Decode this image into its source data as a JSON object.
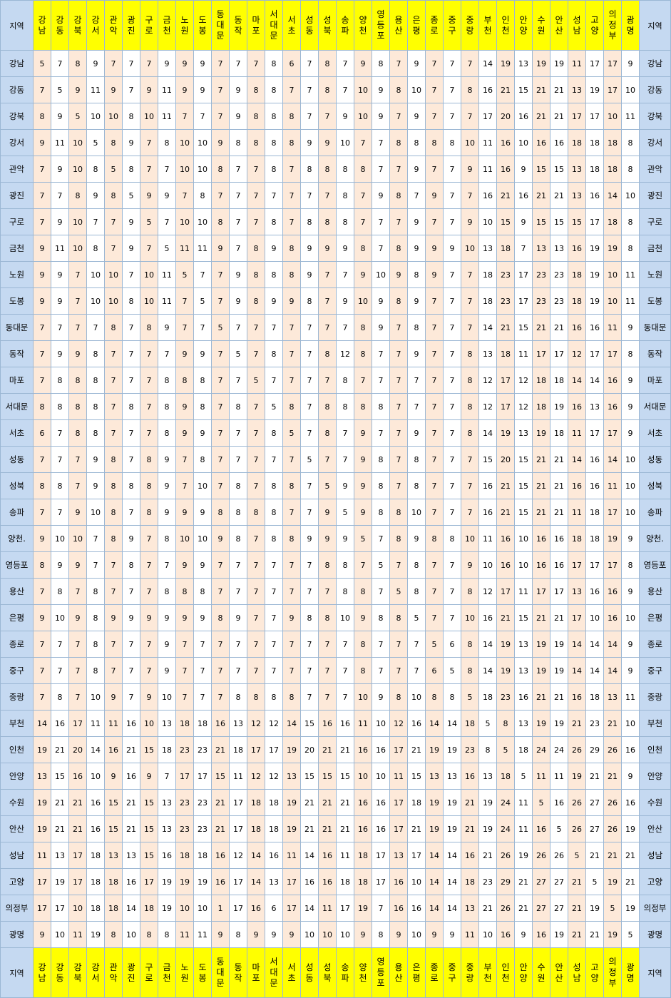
{
  "table": {
    "corner_label": "지역",
    "columns": [
      "강남",
      "강동",
      "강북",
      "강서",
      "관악",
      "광진",
      "구로",
      "금천",
      "노원",
      "도봉",
      "동대문",
      "동작",
      "마포",
      "서대문",
      "서초",
      "성동",
      "성북",
      "송파",
      "양천",
      "영등포",
      "용산",
      "은평",
      "종로",
      "중구",
      "중랑",
      "부천",
      "인천",
      "안양",
      "수원",
      "안산",
      "성남",
      "고양",
      "의정부",
      "광명"
    ],
    "rows": [
      {
        "label": "강남",
        "values": [
          5,
          7,
          8,
          9,
          7,
          7,
          7,
          9,
          9,
          9,
          7,
          7,
          7,
          8,
          6,
          7,
          8,
          7,
          9,
          8,
          7,
          9,
          7,
          7,
          7,
          14,
          19,
          13,
          19,
          19,
          11,
          17,
          17,
          9
        ]
      },
      {
        "label": "강동",
        "values": [
          7,
          5,
          9,
          11,
          9,
          7,
          9,
          11,
          9,
          9,
          7,
          9,
          8,
          8,
          7,
          7,
          8,
          7,
          10,
          9,
          8,
          10,
          7,
          7,
          8,
          16,
          21,
          15,
          21,
          21,
          13,
          19,
          17,
          10
        ]
      },
      {
        "label": "강북",
        "values": [
          8,
          9,
          5,
          10,
          10,
          8,
          10,
          11,
          7,
          7,
          7,
          9,
          8,
          8,
          8,
          7,
          7,
          9,
          10,
          9,
          7,
          9,
          7,
          7,
          7,
          17,
          20,
          16,
          21,
          21,
          17,
          17,
          10,
          11
        ]
      },
      {
        "label": "강서",
        "values": [
          9,
          11,
          10,
          5,
          8,
          9,
          7,
          8,
          10,
          10,
          9,
          8,
          8,
          8,
          8,
          9,
          9,
          10,
          7,
          7,
          8,
          8,
          8,
          8,
          10,
          11,
          16,
          10,
          16,
          16,
          18,
          18,
          18,
          8
        ]
      },
      {
        "label": "관악",
        "values": [
          7,
          9,
          10,
          8,
          5,
          8,
          7,
          7,
          10,
          10,
          8,
          7,
          7,
          8,
          7,
          8,
          8,
          8,
          8,
          7,
          7,
          9,
          7,
          7,
          9,
          11,
          16,
          9,
          15,
          15,
          13,
          18,
          18,
          8
        ]
      },
      {
        "label": "광진",
        "values": [
          7,
          7,
          8,
          9,
          8,
          5,
          9,
          9,
          7,
          8,
          7,
          7,
          7,
          7,
          7,
          7,
          7,
          8,
          7,
          9,
          8,
          7,
          9,
          7,
          7,
          16,
          21,
          16,
          21,
          21,
          13,
          16,
          14,
          10
        ]
      },
      {
        "label": "구로",
        "values": [
          7,
          9,
          10,
          7,
          7,
          9,
          5,
          7,
          10,
          10,
          8,
          7,
          7,
          8,
          7,
          8,
          8,
          8,
          7,
          7,
          7,
          9,
          7,
          7,
          9,
          10,
          15,
          9,
          15,
          15,
          15,
          17,
          18,
          8
        ]
      },
      {
        "label": "금천",
        "values": [
          9,
          11,
          10,
          8,
          7,
          9,
          7,
          5,
          11,
          11,
          9,
          7,
          8,
          9,
          8,
          9,
          9,
          9,
          8,
          7,
          8,
          9,
          9,
          9,
          10,
          13,
          18,
          7,
          13,
          13,
          16,
          19,
          19,
          8
        ]
      },
      {
        "label": "노원",
        "values": [
          9,
          9,
          7,
          10,
          10,
          7,
          10,
          11,
          5,
          7,
          7,
          9,
          8,
          8,
          8,
          9,
          7,
          7,
          9,
          10,
          9,
          8,
          9,
          7,
          7,
          18,
          23,
          17,
          23,
          23,
          18,
          19,
          10,
          11
        ]
      },
      {
        "label": "도봉",
        "values": [
          9,
          9,
          7,
          10,
          10,
          8,
          10,
          11,
          7,
          5,
          7,
          9,
          8,
          9,
          9,
          8,
          7,
          9,
          10,
          9,
          8,
          9,
          7,
          7,
          7,
          18,
          23,
          17,
          23,
          23,
          18,
          19,
          10,
          11
        ]
      },
      {
        "label": "동대문",
        "values": [
          7,
          7,
          7,
          7,
          8,
          7,
          8,
          9,
          7,
          7,
          5,
          7,
          7,
          7,
          7,
          7,
          7,
          7,
          8,
          9,
          7,
          8,
          7,
          7,
          7,
          14,
          21,
          15,
          21,
          21,
          16,
          16,
          11,
          9
        ]
      },
      {
        "label": "동작",
        "values": [
          7,
          9,
          9,
          8,
          7,
          7,
          7,
          7,
          9,
          9,
          7,
          5,
          7,
          8,
          7,
          7,
          8,
          12,
          8,
          7,
          7,
          9,
          7,
          7,
          8,
          13,
          18,
          11,
          17,
          17,
          12,
          17,
          17,
          8
        ]
      },
      {
        "label": "마포",
        "values": [
          7,
          8,
          8,
          8,
          7,
          7,
          7,
          8,
          8,
          8,
          7,
          7,
          5,
          7,
          7,
          7,
          7,
          8,
          7,
          7,
          7,
          7,
          7,
          7,
          8,
          12,
          17,
          12,
          18,
          18,
          14,
          14,
          16,
          9
        ]
      },
      {
        "label": "서대문",
        "values": [
          8,
          8,
          8,
          8,
          7,
          8,
          7,
          8,
          9,
          8,
          7,
          8,
          7,
          5,
          8,
          7,
          8,
          8,
          8,
          8,
          7,
          7,
          7,
          7,
          8,
          12,
          17,
          12,
          18,
          19,
          16,
          13,
          16,
          9
        ]
      },
      {
        "label": "서초",
        "values": [
          6,
          7,
          8,
          8,
          7,
          7,
          7,
          8,
          9,
          9,
          7,
          7,
          7,
          8,
          5,
          7,
          8,
          7,
          9,
          7,
          7,
          9,
          7,
          7,
          8,
          14,
          19,
          13,
          19,
          18,
          11,
          17,
          17,
          9
        ]
      },
      {
        "label": "성동",
        "values": [
          7,
          7,
          7,
          9,
          8,
          7,
          8,
          9,
          7,
          8,
          7,
          7,
          7,
          7,
          7,
          5,
          7,
          7,
          9,
          8,
          7,
          8,
          7,
          7,
          7,
          15,
          20,
          15,
          21,
          21,
          14,
          16,
          14,
          10
        ]
      },
      {
        "label": "성북",
        "values": [
          8,
          8,
          7,
          9,
          8,
          8,
          8,
          9,
          7,
          10,
          7,
          8,
          7,
          8,
          8,
          7,
          5,
          9,
          9,
          8,
          7,
          8,
          7,
          7,
          7,
          16,
          21,
          15,
          21,
          21,
          16,
          16,
          11,
          10
        ]
      },
      {
        "label": "송파",
        "values": [
          7,
          7,
          9,
          10,
          8,
          7,
          8,
          9,
          9,
          9,
          8,
          8,
          8,
          8,
          7,
          7,
          9,
          5,
          9,
          8,
          8,
          10,
          7,
          7,
          7,
          16,
          21,
          15,
          21,
          21,
          11,
          18,
          17,
          10
        ]
      },
      {
        "label": "양천.",
        "values": [
          9,
          10,
          10,
          7,
          8,
          9,
          7,
          8,
          10,
          10,
          9,
          8,
          7,
          8,
          8,
          9,
          9,
          9,
          5,
          7,
          8,
          9,
          8,
          8,
          10,
          11,
          16,
          10,
          16,
          16,
          18,
          18,
          19,
          9
        ]
      },
      {
        "label": "영등포",
        "values": [
          8,
          9,
          9,
          7,
          7,
          8,
          7,
          7,
          9,
          9,
          7,
          7,
          7,
          7,
          7,
          7,
          8,
          8,
          7,
          5,
          7,
          8,
          7,
          7,
          9,
          10,
          16,
          10,
          16,
          16,
          17,
          17,
          17,
          8
        ]
      },
      {
        "label": "용산",
        "values": [
          7,
          8,
          7,
          8,
          7,
          7,
          7,
          8,
          8,
          8,
          7,
          7,
          7,
          7,
          7,
          7,
          7,
          8,
          8,
          7,
          5,
          8,
          7,
          7,
          8,
          12,
          17,
          11,
          17,
          17,
          13,
          16,
          16,
          9
        ]
      },
      {
        "label": "은평",
        "values": [
          9,
          10,
          9,
          8,
          9,
          9,
          9,
          9,
          9,
          9,
          8,
          9,
          7,
          7,
          9,
          8,
          8,
          10,
          9,
          8,
          8,
          5,
          7,
          7,
          10,
          16,
          21,
          15,
          21,
          21,
          17,
          10,
          16,
          10
        ]
      },
      {
        "label": "종로",
        "values": [
          7,
          7,
          7,
          8,
          7,
          7,
          7,
          9,
          7,
          7,
          7,
          7,
          7,
          7,
          7,
          7,
          7,
          7,
          8,
          7,
          7,
          7,
          5,
          6,
          8,
          14,
          19,
          13,
          19,
          19,
          14,
          14,
          14,
          9
        ]
      },
      {
        "label": "중구",
        "values": [
          7,
          7,
          7,
          8,
          7,
          7,
          7,
          9,
          7,
          7,
          7,
          7,
          7,
          7,
          7,
          7,
          7,
          7,
          8,
          7,
          7,
          7,
          6,
          5,
          8,
          14,
          19,
          13,
          19,
          19,
          14,
          14,
          14,
          9
        ]
      },
      {
        "label": "중랑",
        "values": [
          7,
          8,
          7,
          10,
          9,
          7,
          9,
          10,
          7,
          7,
          7,
          8,
          8,
          8,
          8,
          7,
          7,
          7,
          10,
          9,
          8,
          10,
          8,
          8,
          5,
          18,
          23,
          16,
          21,
          21,
          16,
          18,
          13,
          11
        ]
      },
      {
        "label": "부천",
        "values": [
          14,
          16,
          17,
          11,
          11,
          16,
          10,
          13,
          18,
          18,
          16,
          13,
          12,
          12,
          14,
          15,
          16,
          16,
          11,
          10,
          12,
          16,
          14,
          14,
          18,
          5,
          8,
          13,
          19,
          19,
          21,
          23,
          21,
          10
        ]
      },
      {
        "label": "인천",
        "values": [
          19,
          21,
          20,
          14,
          16,
          21,
          15,
          18,
          23,
          23,
          21,
          18,
          17,
          17,
          19,
          20,
          21,
          21,
          16,
          16,
          17,
          21,
          19,
          19,
          23,
          8,
          5,
          18,
          24,
          24,
          26,
          29,
          26,
          16
        ]
      },
      {
        "label": "안양",
        "values": [
          13,
          15,
          16,
          10,
          9,
          16,
          9,
          7,
          17,
          17,
          15,
          11,
          12,
          12,
          13,
          15,
          15,
          15,
          10,
          10,
          11,
          15,
          13,
          13,
          16,
          13,
          18,
          5,
          11,
          11,
          19,
          21,
          21,
          9
        ]
      },
      {
        "label": "수원",
        "values": [
          19,
          21,
          21,
          16,
          15,
          21,
          15,
          13,
          23,
          23,
          21,
          17,
          18,
          18,
          19,
          21,
          21,
          21,
          16,
          16,
          17,
          18,
          19,
          19,
          21,
          19,
          24,
          11,
          5,
          16,
          26,
          27,
          26,
          16
        ]
      },
      {
        "label": "안산",
        "values": [
          19,
          21,
          21,
          16,
          15,
          21,
          15,
          13,
          23,
          23,
          21,
          17,
          18,
          18,
          19,
          21,
          21,
          21,
          16,
          16,
          17,
          21,
          19,
          19,
          21,
          19,
          24,
          11,
          16,
          5,
          26,
          27,
          26,
          19
        ]
      },
      {
        "label": "성남",
        "values": [
          11,
          13,
          17,
          18,
          13,
          13,
          15,
          16,
          18,
          18,
          16,
          12,
          14,
          16,
          11,
          14,
          16,
          11,
          18,
          17,
          13,
          17,
          14,
          14,
          16,
          21,
          26,
          19,
          26,
          26,
          5,
          21,
          21,
          21
        ]
      },
      {
        "label": "고양",
        "values": [
          17,
          19,
          17,
          18,
          18,
          16,
          17,
          19,
          19,
          19,
          16,
          17,
          14,
          13,
          17,
          16,
          16,
          18,
          18,
          17,
          16,
          10,
          14,
          14,
          18,
          23,
          29,
          21,
          27,
          27,
          21,
          5,
          19,
          21
        ]
      },
      {
        "label": "의정부",
        "values": [
          17,
          17,
          10,
          18,
          18,
          14,
          18,
          19,
          10,
          10,
          1,
          17,
          16,
          6,
          17,
          14,
          11,
          17,
          19,
          7,
          16,
          16,
          14,
          14,
          13,
          21,
          26,
          21,
          27,
          27,
          21,
          19,
          5,
          19
        ]
      },
      {
        "label": "광명",
        "values": [
          9,
          10,
          11,
          19,
          8,
          10,
          8,
          8,
          11,
          11,
          9,
          8,
          9,
          9,
          9,
          10,
          10,
          10,
          9,
          8,
          9,
          10,
          9,
          9,
          11,
          10,
          16,
          9,
          16,
          19,
          21,
          21,
          19,
          5
        ]
      }
    ]
  }
}
